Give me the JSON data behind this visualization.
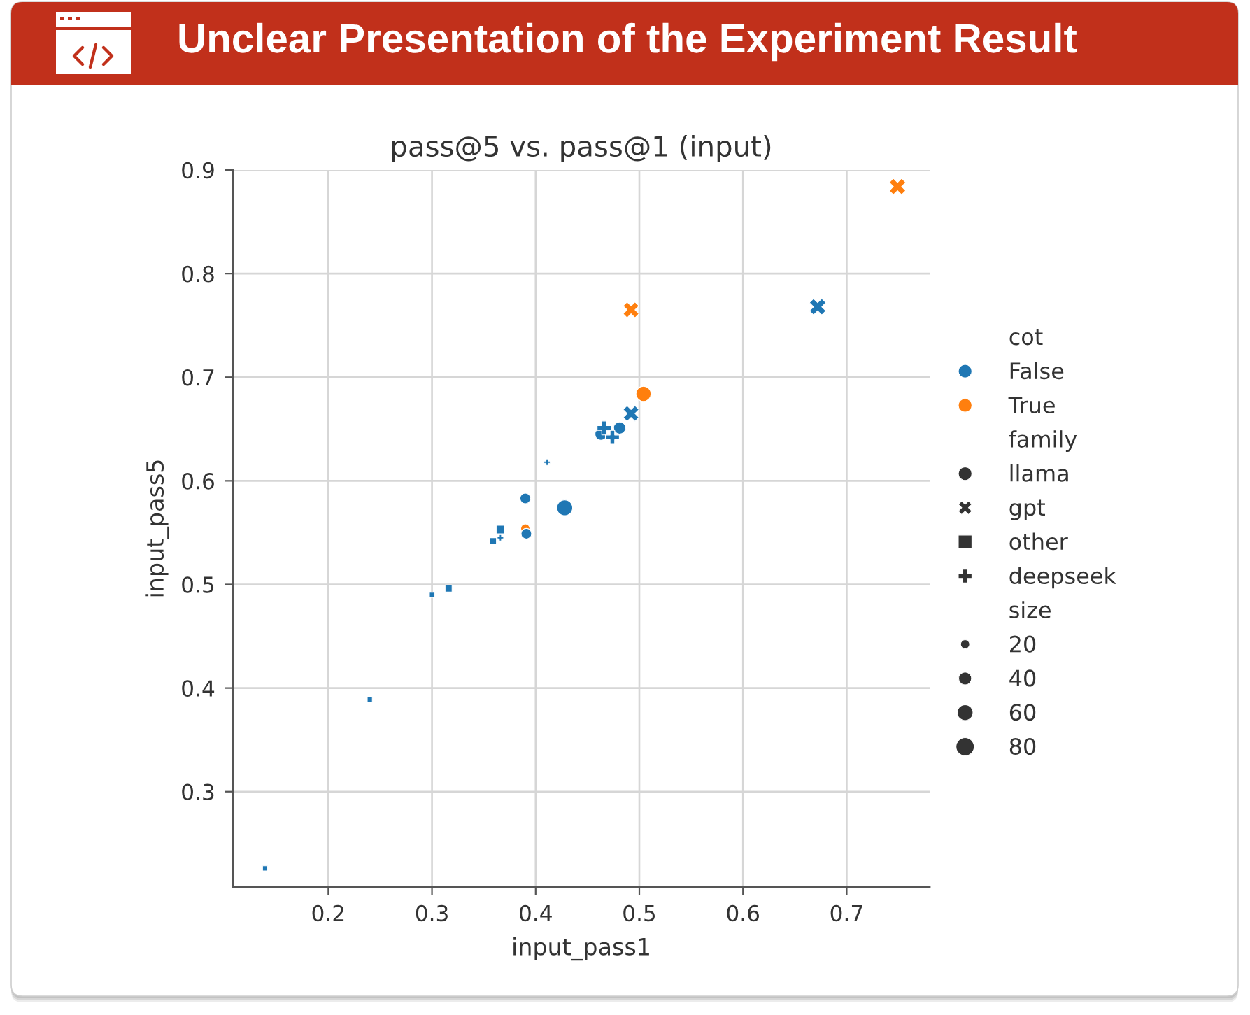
{
  "chart_data": {
    "type": "bubble",
    "title": "Unclear Presentation of the Experiment Result",
    "subtitle": "pass@5 vs. pass@1 (input)",
    "xlabel": "input_pass1",
    "ylabel": "input_pass5",
    "legend_title": [
      "cot",
      "family",
      "size"
    ],
    "series": [
      {
        "name": "False",
        "color": "#1f77b4",
        "marker": "circle"
      },
      {
        "name": "True",
        "color": "#ff7f0e",
        "marker": "circle"
      },
      {
        "name": "llama",
        "color": "#333333",
        "marker": "circle"
      },
      {
        "name": "gpt",
        "color": "#333333",
        "marker": "x"
      },
      {
        "name": "other",
        "color": "#333333",
        "marker": "square"
      },
      {
        "name": "deepseek",
        "color": "#333333",
        "marker": "cross"
      },
      {
        "color": "#ff7f0e",
        "marker": "circle",
        "x": [
          0.39,
          0.504
        ],
        "values": [
          0.554,
          0.684
        ],
        "sizes": [
          20,
          55
        ]
      },
      {
        "color": "#1f77b4",
        "marker": "circle",
        "x": [
          0.39,
          0.391,
          0.428,
          0.463,
          0.481
        ],
        "values": [
          0.583,
          0.549,
          0.574,
          0.645,
          0.651
        ],
        "sizes": [
          27,
          27,
          60,
          35,
          35
        ]
      },
      {
        "color": "#1f77b4",
        "marker": "x",
        "x": [
          0.492,
          0.672
        ],
        "values": [
          0.665,
          0.768
        ],
        "sizes": [
          48,
          52
        ]
      },
      {
        "color": "#ff7f0e",
        "marker": "x",
        "x": [
          0.492,
          0.749
        ],
        "values": [
          0.765,
          0.884
        ],
        "sizes": [
          48,
          52
        ]
      },
      {
        "color": "#1f77b4",
        "marker": "square",
        "x": [
          0.139,
          0.24,
          0.3,
          0.316,
          0.359,
          0.366
        ],
        "values": [
          0.226,
          0.389,
          0.49,
          0.496,
          0.542,
          0.553
        ],
        "sizes": [
          8,
          8,
          8,
          15,
          13,
          22
        ]
      },
      {
        "color": "#1f77b4",
        "marker": "cross",
        "x": [
          0.366,
          0.411,
          0.466,
          0.474
        ],
        "values": [
          0.545,
          0.618,
          0.651,
          0.642
        ],
        "sizes": [
          7,
          7,
          33,
          33
        ]
      }
    ],
    "size_legend": [
      20,
      40,
      60,
      80
    ],
    "xlim": [
      0.108,
      0.78
    ],
    "ylim": [
      0.208,
      0.9
    ],
    "xticks": [
      0.2,
      0.3,
      0.4,
      0.5,
      0.6,
      0.7
    ],
    "yticks": [
      0.3,
      0.4,
      0.5,
      0.6,
      0.7,
      0.8,
      0.9
    ],
    "grid": true,
    "legend": "right"
  }
}
